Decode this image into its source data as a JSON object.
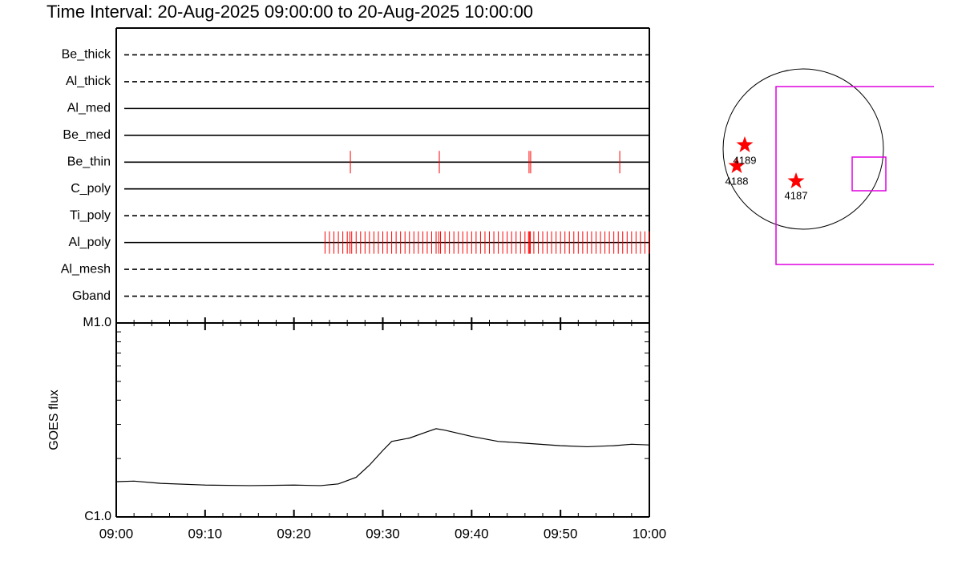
{
  "chart_data": [
    {
      "type": "timeline",
      "title": "Time Interval: 20-Aug-2025 09:00:00 to 20-Aug-2025 10:00:00",
      "color": "#ff0000",
      "xlim": [
        0,
        60
      ],
      "rows": [
        {
          "name": "Be_thick",
          "style": "dashed",
          "events": []
        },
        {
          "name": "Al_thick",
          "style": "dashed",
          "events": []
        },
        {
          "name": "Al_med",
          "style": "solid",
          "events": []
        },
        {
          "name": "Be_med",
          "style": "solid",
          "events": []
        },
        {
          "name": "Be_thin",
          "style": "solid",
          "events": [
            26.35,
            36.36,
            46.46,
            46.64,
            56.67
          ]
        },
        {
          "name": "C_poly",
          "style": "solid",
          "events": []
        },
        {
          "name": "Ti_poly",
          "style": "dashed",
          "events": []
        },
        {
          "name": "Al_poly",
          "style": "solid",
          "events": [
            23.5,
            24,
            24.5,
            25,
            25.5,
            26,
            26.3,
            26.5,
            27,
            27.5,
            28,
            28.5,
            29,
            29.5,
            30,
            30.5,
            31,
            31.5,
            32,
            32.5,
            33,
            33.5,
            34,
            34.5,
            35,
            35.5,
            36,
            36.3,
            36.5,
            37,
            37.5,
            38,
            38.5,
            39,
            39.5,
            40,
            40.5,
            41,
            41.5,
            42,
            42.5,
            43,
            43.5,
            44,
            44.5,
            45,
            45.5,
            46,
            46.4,
            46.5,
            46.6,
            47,
            47.5,
            48,
            48.5,
            49,
            49.5,
            50,
            50.5,
            51,
            51.5,
            52,
            52.5,
            53,
            53.5,
            54,
            54.5,
            55,
            55.5,
            56,
            56.5,
            57,
            57.5,
            58,
            58.5,
            59,
            59.5,
            60
          ]
        },
        {
          "name": "Al_mesh",
          "style": "dashed",
          "events": []
        },
        {
          "name": "Gband",
          "style": "dashed",
          "events": []
        }
      ]
    },
    {
      "type": "line",
      "ylabel": "GOES flux",
      "color": "#000000",
      "log": true,
      "x": [
        0,
        2,
        5,
        10,
        15,
        20,
        23,
        25,
        27,
        28.5,
        30,
        31,
        33,
        35,
        36,
        37,
        40,
        43,
        46,
        50,
        53,
        56,
        58,
        60
      ],
      "values": [
        1.52e-06,
        1.53e-06,
        1.49e-06,
        1.46e-06,
        1.45e-06,
        1.46e-06,
        1.45e-06,
        1.48e-06,
        1.6e-06,
        1.85e-06,
        2.2e-06,
        2.45e-06,
        2.55e-06,
        2.75e-06,
        2.85e-06,
        2.8e-06,
        2.6e-06,
        2.45e-06,
        2.4e-06,
        2.33e-06,
        2.3e-06,
        2.33e-06,
        2.37e-06,
        2.35e-06
      ],
      "xlim": [
        0,
        60
      ],
      "xticks": [
        {
          "value": 0,
          "label": "09:00"
        },
        {
          "value": 10,
          "label": "09:10"
        },
        {
          "value": 20,
          "label": "09:20"
        },
        {
          "value": 30,
          "label": "09:30"
        },
        {
          "value": 40,
          "label": "09:40"
        },
        {
          "value": 50,
          "label": "09:50"
        },
        {
          "value": 60,
          "label": "10:00"
        }
      ],
      "ylim": [
        1e-06,
        1e-05
      ],
      "yticks": [
        {
          "value": 1e-06,
          "label": "C1.0"
        },
        {
          "value": 1e-05,
          "label": "M1.0"
        }
      ]
    }
  ],
  "map": {
    "regions": [
      "4189",
      "4188",
      "4187"
    ]
  }
}
